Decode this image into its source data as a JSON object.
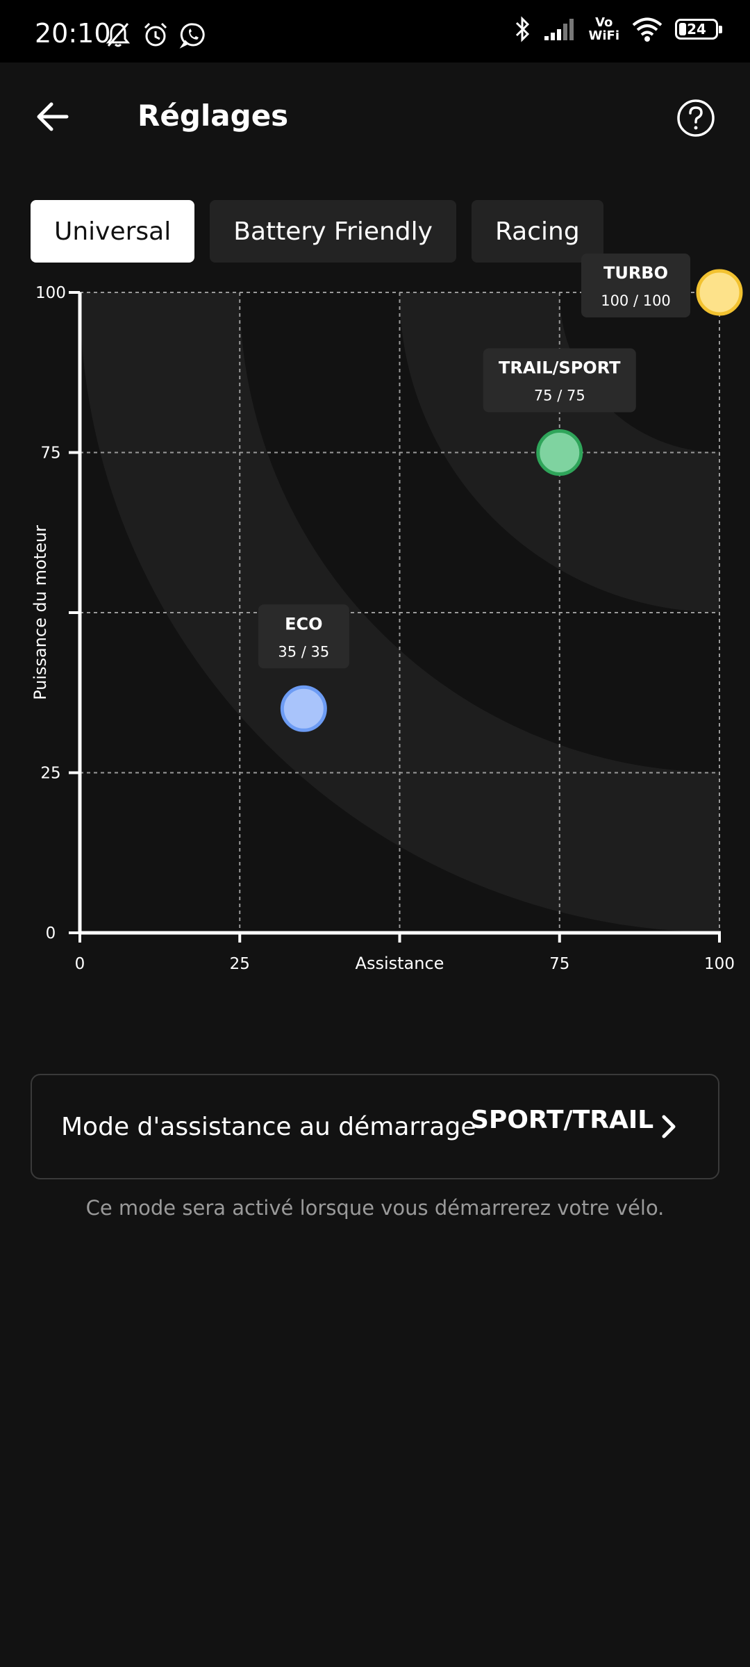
{
  "status_bar": {
    "time": "20:10",
    "left_icons": [
      "bell-off-icon",
      "alarm-icon",
      "whatsapp-icon"
    ],
    "right_icons": [
      "bluetooth-icon",
      "signal-icon",
      "vowifi-icon",
      "wifi-icon",
      "battery-icon"
    ],
    "vowifi_line1": "Vo",
    "vowifi_line2": "WiFi",
    "battery_level": "24"
  },
  "header": {
    "title": "Réglages",
    "back_icon": "arrow-left-icon",
    "help_icon": "help-circle-icon"
  },
  "tabs": [
    {
      "label": "Universal",
      "active": true
    },
    {
      "label": "Battery Friendly",
      "active": false
    },
    {
      "label": "Racing",
      "active": false
    }
  ],
  "chart_data": {
    "type": "scatter",
    "xlabel": "Assistance",
    "ylabel": "Puissance du moteur",
    "xlim": [
      0,
      100
    ],
    "ylim": [
      0,
      100
    ],
    "x_ticks": [
      "0",
      "25",
      "",
      "75",
      "100"
    ],
    "y_ticks": [
      "0",
      "25",
      "",
      "75",
      "100"
    ],
    "grid": true,
    "points": [
      {
        "name": "ECO",
        "label": "35 / 35",
        "x": 35,
        "y": 35,
        "fill": "#a9c4fb",
        "stroke": "#6d9cf4"
      },
      {
        "name": "TRAIL/SPORT",
        "label": "75 / 75",
        "x": 75,
        "y": 75,
        "fill": "#7fd3a0",
        "stroke": "#2fa55a"
      },
      {
        "name": "TURBO",
        "label": "100 / 100",
        "x": 100,
        "y": 100,
        "fill": "#fde28a",
        "stroke": "#f2c230"
      }
    ]
  },
  "start_mode": {
    "label": "Mode d'assistance au démarrage",
    "value": "SPORT/TRAIL",
    "caption": "Ce mode sera activé lorsque vous démarrerez votre vélo."
  },
  "colors": {
    "background": "#121212",
    "band": "#1e1e1e",
    "tab_inactive": "#232323"
  }
}
